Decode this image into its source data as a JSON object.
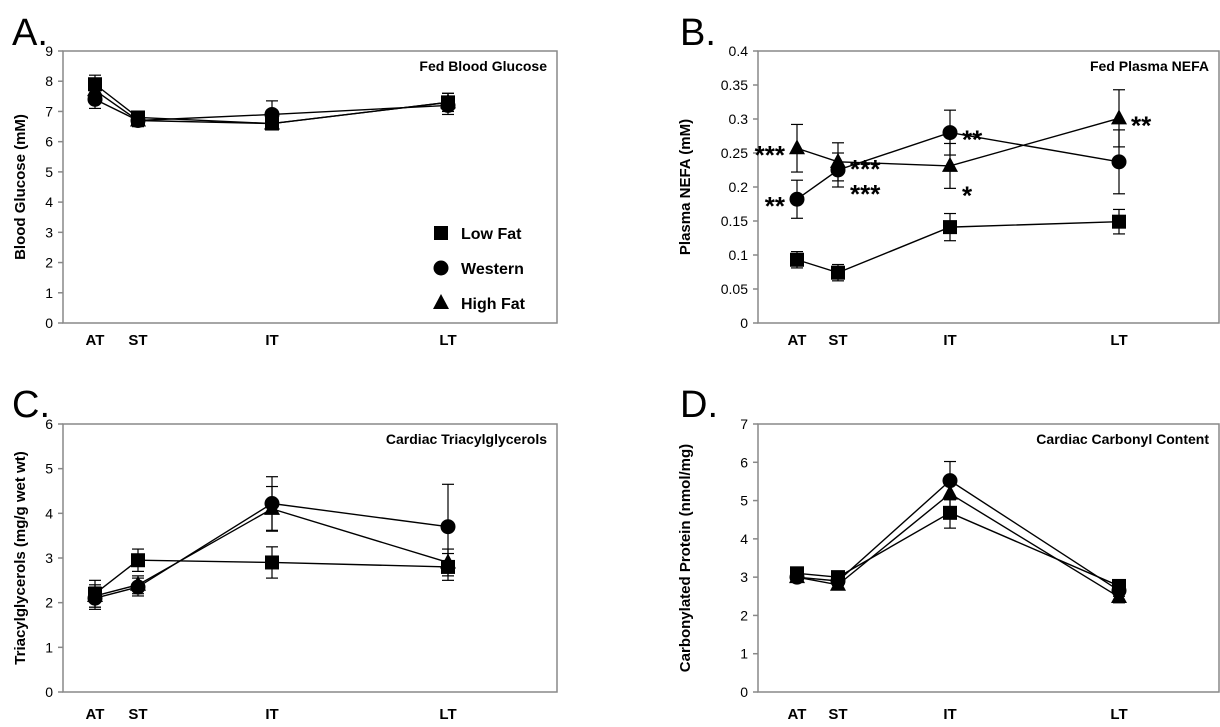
{
  "chart_data": [
    {
      "type": "line",
      "panel_label": "A.",
      "title": "Fed Blood Glucose",
      "ylabel": "Blood Glucose (mM)",
      "xlabel": "",
      "categories": [
        "AT",
        "ST",
        "IT",
        "LT"
      ],
      "x": [
        1,
        2,
        5,
        9
      ],
      "ylim": [
        0,
        9
      ],
      "yticks": [
        0,
        1,
        2,
        3,
        4,
        5,
        6,
        7,
        8,
        9
      ],
      "grid": false,
      "legend": {
        "placement": "bottom-right",
        "entries": [
          {
            "label": "Low Fat",
            "marker": "square"
          },
          {
            "label": "Western",
            "marker": "circle"
          },
          {
            "label": "High Fat",
            "marker": "triangle"
          }
        ]
      },
      "series": [
        {
          "name": "Low Fat",
          "marker": "square",
          "values": [
            7.9,
            6.8,
            6.6,
            7.3
          ],
          "errors": [
            0.3,
            0.2,
            0.2,
            0.3
          ]
        },
        {
          "name": "Western",
          "marker": "circle",
          "values": [
            7.4,
            6.7,
            6.9,
            7.2
          ],
          "errors": [
            0.3,
            0.2,
            0.45,
            0.3
          ]
        },
        {
          "name": "High Fat",
          "marker": "triangle",
          "values": [
            7.7,
            6.7,
            6.6,
            7.3
          ],
          "errors": [
            0.3,
            0.2,
            0.2,
            0.3
          ]
        }
      ],
      "annotations": []
    },
    {
      "type": "line",
      "panel_label": "B.",
      "title": "Fed Plasma NEFA",
      "ylabel": "Plasma NEFA (mM)",
      "xlabel": "",
      "categories": [
        "AT",
        "ST",
        "IT",
        "LT"
      ],
      "x": [
        1,
        2,
        5,
        9
      ],
      "ylim": [
        0,
        0.4
      ],
      "yticks": [
        0,
        0.05,
        0.1,
        0.15,
        0.2,
        0.25,
        0.3,
        0.35,
        0.4
      ],
      "ytick_labels": [
        "0",
        "0.05",
        "0.1",
        "0.15",
        "0.2",
        "0.25",
        "0.3",
        "0.35",
        "0.4"
      ],
      "grid": false,
      "series": [
        {
          "name": "Low Fat",
          "marker": "square",
          "values": [
            0.093,
            0.074,
            0.141,
            0.149
          ],
          "errors": [
            0.012,
            0.012,
            0.02,
            0.018
          ]
        },
        {
          "name": "Western",
          "marker": "circle",
          "values": [
            0.182,
            0.225,
            0.28,
            0.237
          ],
          "errors": [
            0.028,
            0.025,
            0.033,
            0.047
          ]
        },
        {
          "name": "High Fat",
          "marker": "triangle",
          "values": [
            0.257,
            0.237,
            0.231,
            0.301
          ],
          "errors": [
            0.035,
            0.028,
            0.033,
            0.042
          ]
        }
      ],
      "annotations": [
        {
          "text": "***",
          "x": 1,
          "y": 0.257,
          "side": "left"
        },
        {
          "text": "**",
          "x": 1,
          "y": 0.182,
          "side": "left"
        },
        {
          "text": "***",
          "x": 2,
          "y": 0.237,
          "side": "right"
        },
        {
          "text": "***",
          "x": 2,
          "y": 0.2,
          "side": "right"
        },
        {
          "text": "**",
          "x": 5,
          "y": 0.28,
          "side": "right"
        },
        {
          "text": "*",
          "x": 5,
          "y": 0.198,
          "side": "right"
        },
        {
          "text": "**",
          "x": 9,
          "y": 0.301,
          "side": "right"
        }
      ]
    },
    {
      "type": "line",
      "panel_label": "C.",
      "title": "Cardiac Triacylglycerols",
      "ylabel": "Triacylglycerols (mg/g wet wt)",
      "xlabel": "",
      "categories": [
        "AT",
        "ST",
        "IT",
        "LT"
      ],
      "x": [
        1,
        2,
        5,
        9
      ],
      "ylim": [
        0,
        6
      ],
      "yticks": [
        0,
        1,
        2,
        3,
        4,
        5,
        6
      ],
      "grid": false,
      "series": [
        {
          "name": "Low Fat",
          "marker": "square",
          "values": [
            2.2,
            2.95,
            2.9,
            2.8
          ],
          "errors": [
            0.3,
            0.25,
            0.35,
            0.3
          ]
        },
        {
          "name": "Western",
          "marker": "circle",
          "values": [
            2.1,
            2.35,
            4.22,
            3.7
          ],
          "errors": [
            0.25,
            0.2,
            0.6,
            0.95
          ]
        },
        {
          "name": "High Fat",
          "marker": "triangle",
          "values": [
            2.15,
            2.4,
            4.1,
            2.9
          ],
          "errors": [
            0.25,
            0.2,
            0.5,
            0.3
          ]
        }
      ],
      "annotations": []
    },
    {
      "type": "line",
      "panel_label": "D.",
      "title": "Cardiac Carbonyl Content",
      "ylabel": "Carbonylated Protein (nmol/mg)",
      "xlabel": "",
      "categories": [
        "AT",
        "ST",
        "IT",
        "LT"
      ],
      "x": [
        1,
        2,
        5,
        9
      ],
      "ylim": [
        0,
        7
      ],
      "yticks": [
        0,
        1,
        2,
        3,
        4,
        5,
        6,
        7
      ],
      "grid": false,
      "series": [
        {
          "name": "Low Fat",
          "marker": "square",
          "values": [
            3.1,
            3.0,
            4.68,
            2.77
          ],
          "errors": [
            0.12,
            0.12,
            0.4,
            0.15
          ]
        },
        {
          "name": "Western",
          "marker": "circle",
          "values": [
            3.0,
            2.9,
            5.52,
            2.65
          ],
          "errors": [
            0.12,
            0.12,
            0.5,
            0.15
          ]
        },
        {
          "name": "High Fat",
          "marker": "triangle",
          "values": [
            3.0,
            2.8,
            5.18,
            2.48
          ],
          "errors": [
            0.12,
            0.12,
            0.45,
            0.15
          ]
        }
      ],
      "annotations": []
    }
  ]
}
